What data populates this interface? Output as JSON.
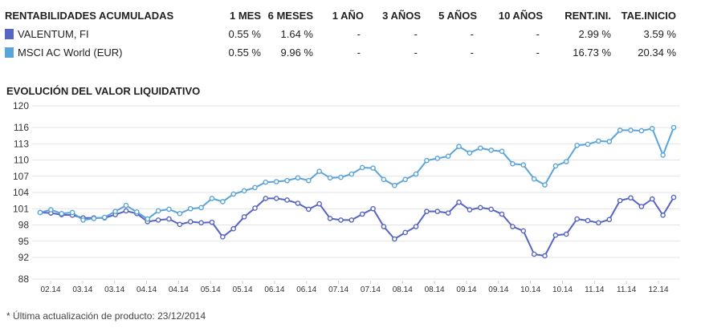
{
  "table": {
    "headers": [
      "RENTABILIDADES ACUMULADAS",
      "1 MES",
      "6 MESES",
      "1 AÑO",
      "3 AÑOS",
      "5 AÑOS",
      "10 AÑOS",
      "RENT.INI.",
      "TAE.INICIO"
    ],
    "rows": [
      {
        "name": "VALENTUM, FI",
        "color": "#5664c4",
        "values": [
          "0.55 %",
          "1.64 %",
          "-",
          "-",
          "-",
          "-",
          "2.99 %",
          "3.59 %"
        ]
      },
      {
        "name": "MSCI AC World (EUR)",
        "color": "#5ba4d9",
        "values": [
          "0.55 %",
          "9.96 %",
          "-",
          "-",
          "-",
          "-",
          "16.73 %",
          "20.34 %"
        ]
      }
    ]
  },
  "section_title": "EVOLUCIÓN DEL VALOR LIQUIDATIVO",
  "footnote": "* Última actualización de producto: 23/12/2014",
  "chart_data": {
    "type": "line",
    "title": "",
    "xlabel": "",
    "ylabel": "",
    "ylim": [
      88,
      120
    ],
    "y_ticks": [
      88,
      92,
      95,
      98,
      101,
      104,
      107,
      110,
      113,
      116,
      120
    ],
    "grid": true,
    "x_tick_labels": [
      "02.14",
      "03.14",
      "03.14",
      "04.14",
      "04.14",
      "05.14",
      "05.14",
      "06.14",
      "06.14",
      "07.14",
      "07.14",
      "08.14",
      "08.14",
      "09.14",
      "09.14",
      "10.14",
      "10.14",
      "11.14",
      "11.14",
      "12.14"
    ],
    "series": [
      {
        "name": "VALENTUM, FI",
        "color": "#5664c4",
        "values": [
          100.3,
          100.2,
          99.9,
          99.8,
          99.3,
          99.3,
          99.3,
          99.9,
          100.6,
          100.1,
          98.6,
          98.9,
          99.1,
          98.1,
          98.6,
          98.4,
          98.5,
          95.8,
          97.3,
          99.5,
          101.1,
          102.9,
          102.9,
          102.6,
          102.0,
          100.9,
          101.9,
          99.2,
          98.9,
          98.9,
          100.0,
          101.0,
          97.7,
          95.4,
          96.6,
          97.7,
          100.5,
          100.5,
          100.2,
          102.2,
          100.8,
          101.2,
          100.9,
          100.0,
          97.7,
          96.9,
          92.6,
          92.3,
          96.1,
          96.3,
          99.1,
          98.8,
          98.4,
          99.0,
          102.5,
          103.0,
          101.4,
          102.8,
          99.8,
          103.1
        ]
      },
      {
        "name": "MSCI AC World (EUR)",
        "color": "#5ba4d9",
        "values": [
          100.3,
          100.8,
          100.1,
          100.3,
          98.9,
          99.2,
          99.4,
          100.5,
          101.6,
          100.4,
          99.1,
          100.6,
          100.9,
          100.1,
          101.0,
          101.2,
          102.9,
          102.3,
          103.7,
          104.3,
          104.9,
          105.9,
          106.0,
          106.2,
          106.7,
          106.2,
          107.9,
          106.7,
          106.8,
          107.4,
          108.6,
          108.5,
          106.4,
          105.3,
          106.4,
          107.4,
          109.9,
          110.3,
          110.7,
          112.5,
          111.3,
          112.2,
          111.8,
          111.6,
          109.3,
          109.1,
          106.5,
          105.4,
          108.9,
          109.7,
          112.7,
          112.9,
          113.5,
          113.4,
          115.5,
          115.5,
          115.4,
          115.8,
          110.9,
          116.0
        ]
      }
    ]
  }
}
